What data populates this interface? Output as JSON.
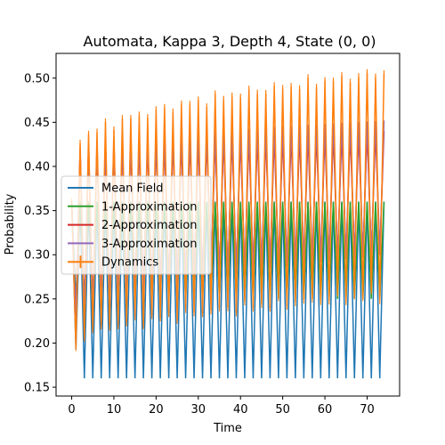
{
  "chart_data": {
    "type": "line",
    "title": "Automata, Kappa 3, Depth 4, State (0, 0)",
    "xlabel": "Time",
    "ylabel": "Probability",
    "xlim": [
      -3.7,
      77.7
    ],
    "ylim": [
      0.14,
      0.528
    ],
    "xticks": [
      0,
      10,
      20,
      30,
      40,
      50,
      60,
      70
    ],
    "yticks": [
      0.15,
      0.2,
      0.25,
      0.3,
      0.35,
      0.4,
      0.45,
      0.5
    ],
    "ytick_labels": [
      "0.15",
      "0.20",
      "0.25",
      "0.30",
      "0.35",
      "0.40",
      "0.45",
      "0.50"
    ],
    "x_range": [
      0,
      74
    ],
    "legend_position": "center-left",
    "series": [
      {
        "name": "Mean Field",
        "color": "#1f77b4",
        "initial": 0.36,
        "first_low": 0.193,
        "odd_values": 0.16,
        "even_values": 0.36
      },
      {
        "name": "1-Approximation",
        "color": "#2ca02c",
        "initial": 0.36,
        "odd_values": 0.25,
        "even_values": 0.36
      },
      {
        "name": "2-Approximation",
        "color": "#d62728",
        "initial": 0.36,
        "odd_start": 0.22,
        "odd_end": 0.3,
        "even_start": 0.415,
        "even_end": 0.44
      },
      {
        "name": "3-Approximation",
        "color": "#9467bd",
        "initial": 0.36,
        "odd_start": 0.22,
        "odd_end": 0.3,
        "even_start": 0.415,
        "even_end": 0.452
      },
      {
        "name": "Dynamics",
        "color": "#ff7f0e",
        "initial": 0.36,
        "first_low": 0.195,
        "odd_start": 0.2,
        "odd_end": 0.255,
        "even_start": 0.415,
        "even_end": 0.505,
        "noise_amplitude": 0.004,
        "has_error_bars": true
      }
    ]
  }
}
